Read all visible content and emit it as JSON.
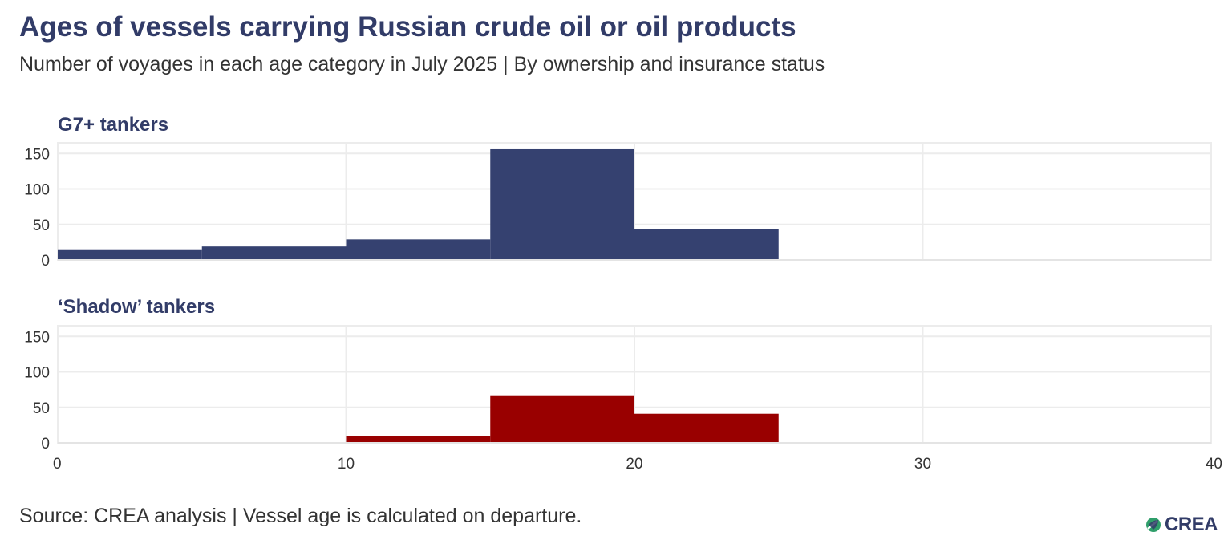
{
  "header": {
    "title": "Ages of vessels carrying Russian crude oil or oil products",
    "subtitle": "Number of voyages in each age category in July 2025 | By ownership and insurance status"
  },
  "footer": {
    "source": "Source: CREA analysis | Vessel age is calculated on departure.",
    "logo_text": "CREA"
  },
  "chart_data": {
    "type": "bar",
    "bins": [
      [
        0,
        5
      ],
      [
        5,
        10
      ],
      [
        10,
        15
      ],
      [
        15,
        20
      ],
      [
        20,
        25
      ]
    ],
    "xlim": [
      0,
      40
    ],
    "ylim": [
      0,
      165
    ],
    "x_ticks": [
      0,
      10,
      20,
      30,
      40
    ],
    "y_ticks": [
      0,
      50,
      100,
      150
    ],
    "grid": true,
    "series": [
      {
        "name": "G7+ tankers",
        "color": "#354170",
        "values": [
          15,
          19,
          29,
          156,
          44
        ]
      },
      {
        "name": "‘Shadow’ tankers",
        "color": "#990000",
        "values": [
          0,
          1,
          10,
          67,
          41
        ]
      }
    ]
  }
}
